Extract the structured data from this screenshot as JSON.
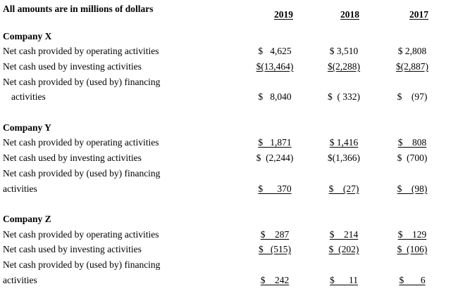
{
  "header": {
    "note": "All amounts are in millions of dollars",
    "years": [
      "2019",
      "2018",
      "2017"
    ]
  },
  "companies": [
    {
      "name": "Company X",
      "rows": [
        {
          "label": "Net cash provided by operating activities",
          "values": [
            "$   4,625",
            "$ 3,510",
            "$ 2,808"
          ],
          "underline": [
            false,
            false,
            false
          ]
        },
        {
          "label": "Net cash used by investing activities",
          "values": [
            "$(13,464)",
            "$(2,288)",
            "$(2,887)"
          ],
          "underline": [
            true,
            true,
            true
          ]
        },
        {
          "label": "Net cash provided by (used by) financing",
          "values": [
            "",
            "",
            ""
          ],
          "underline": [
            false,
            false,
            false
          ]
        },
        {
          "label": "activities",
          "values": [
            "$   8,040",
            "$  ( 332)",
            "$    (97)"
          ],
          "underline": [
            false,
            false,
            false
          ]
        }
      ]
    },
    {
      "name": "Company Y",
      "rows": [
        {
          "label": "Net cash provided by operating activities",
          "values": [
            "$   1,871",
            "$ 1,416",
            "$    808"
          ],
          "underline": [
            true,
            true,
            true
          ]
        },
        {
          "label": "Net cash used by investing activities",
          "values": [
            "$  (2,244)",
            "$(1,366)",
            "$  (700)"
          ],
          "underline": [
            false,
            false,
            false
          ]
        },
        {
          "label": "Net cash provided by (used by) financing",
          "values": [
            "",
            "",
            ""
          ],
          "underline": [
            false,
            false,
            false
          ]
        },
        {
          "label": "activities",
          "values": [
            "$      370",
            "$    (27)",
            "$    (98)"
          ],
          "underline": [
            true,
            true,
            true
          ]
        }
      ]
    },
    {
      "name": "Company Z",
      "rows": [
        {
          "label": "Net cash provided by operating activities",
          "values": [
            "$    287",
            "$    214",
            "$    129"
          ],
          "underline": [
            true,
            true,
            true
          ]
        },
        {
          "label": "Net cash used by investing activities",
          "values": [
            "$   (515)",
            "$  (202)",
            "$  (106)"
          ],
          "underline": [
            true,
            true,
            true
          ]
        },
        {
          "label": "Net cash provided by (used by) financing",
          "values": [
            "",
            "",
            ""
          ],
          "underline": [
            false,
            false,
            false
          ]
        },
        {
          "label": "activities",
          "values": [
            "$    242",
            "$      11",
            "$       6"
          ],
          "underline": [
            true,
            true,
            true
          ]
        }
      ]
    }
  ]
}
